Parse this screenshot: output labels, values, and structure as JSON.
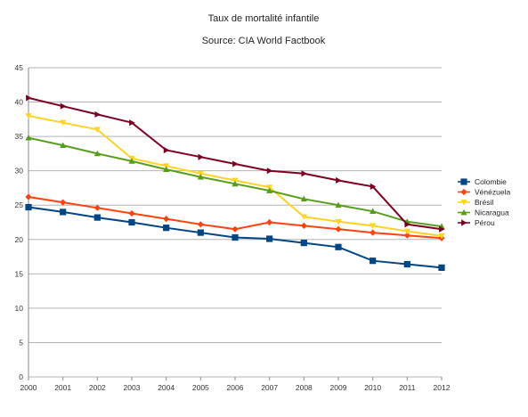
{
  "chart_data": {
    "type": "line",
    "title": "Taux de mortalité infantile",
    "subtitle": "Source:  CIA World Factbook",
    "x": [
      "2000",
      "2001",
      "2002",
      "2003",
      "2004",
      "2005",
      "2006",
      "2007",
      "2008",
      "2009",
      "2010",
      "2011",
      "2012"
    ],
    "ylim": [
      0,
      45
    ],
    "yticks": [
      0,
      5,
      10,
      15,
      20,
      25,
      30,
      35,
      40,
      45
    ],
    "grid": true,
    "legend_position": "right",
    "series": [
      {
        "name": "Colombie",
        "color": "#004586",
        "marker": "square",
        "values": [
          24.7,
          24.0,
          23.2,
          22.5,
          21.7,
          21.0,
          20.3,
          20.1,
          19.5,
          18.9,
          16.9,
          16.4,
          15.9
        ]
      },
      {
        "name": "Vénézuela",
        "color": "#ff420e",
        "marker": "diamond",
        "values": [
          26.2,
          25.4,
          24.6,
          23.8,
          23.0,
          22.2,
          21.5,
          22.5,
          22.0,
          21.5,
          21.0,
          20.6,
          20.2
        ]
      },
      {
        "name": "Brésil",
        "color": "#ffd320",
        "marker": "triangle-down",
        "values": [
          38.0,
          37.0,
          36.0,
          31.8,
          30.7,
          29.6,
          28.6,
          27.6,
          23.3,
          22.6,
          22.0,
          21.2,
          20.5
        ]
      },
      {
        "name": "Nicaragua",
        "color": "#579d1c",
        "marker": "triangle-up",
        "values": [
          34.8,
          33.7,
          32.5,
          31.4,
          30.2,
          29.1,
          28.1,
          27.1,
          25.9,
          25.0,
          24.1,
          22.6,
          21.9
        ]
      },
      {
        "name": "Pérou",
        "color": "#7e0021",
        "marker": "triangle-right",
        "values": [
          40.6,
          39.4,
          38.2,
          37.0,
          33.0,
          32.0,
          31.0,
          30.0,
          29.6,
          28.6,
          27.7,
          22.2,
          21.5
        ]
      }
    ]
  }
}
